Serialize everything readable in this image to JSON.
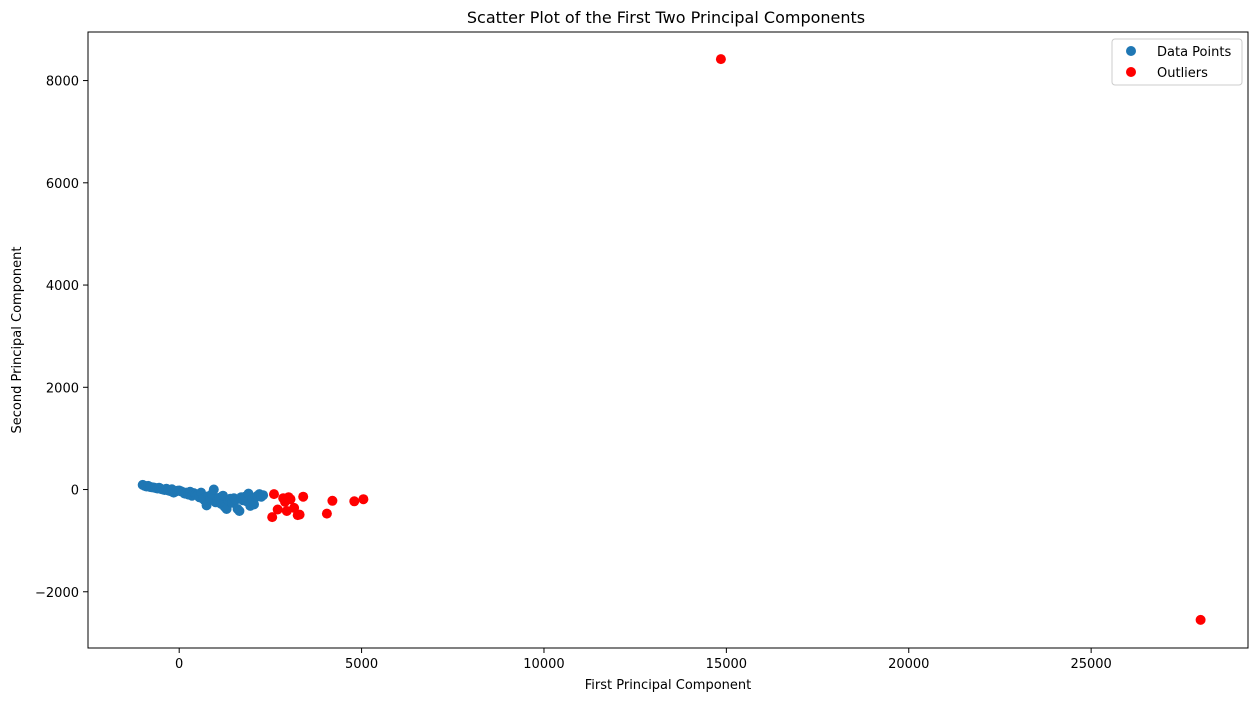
{
  "chart_data": {
    "type": "scatter",
    "title": "Scatter Plot of the First Two Principal Components",
    "xlabel": "First Principal Component",
    "ylabel": "Second Principal Component",
    "xlim": [
      -2500,
      29300
    ],
    "ylim": [
      -3100,
      8950
    ],
    "xticks": [
      0,
      5000,
      10000,
      15000,
      20000,
      25000
    ],
    "xtick_labels": [
      "0",
      "5000",
      "10000",
      "15000",
      "20000",
      "25000"
    ],
    "yticks": [
      -2000,
      0,
      2000,
      4000,
      6000,
      8000
    ],
    "ytick_labels": [
      "−2000",
      "0",
      "2000",
      "4000",
      "6000",
      "8000"
    ],
    "grid": false,
    "legend_position": "top-right",
    "series": [
      {
        "name": "Data Points",
        "color": "#1f77b4",
        "points": [
          [
            -1000,
            90
          ],
          [
            -950,
            75
          ],
          [
            -900,
            60
          ],
          [
            -850,
            70
          ],
          [
            -800,
            50
          ],
          [
            -750,
            45
          ],
          [
            -700,
            40
          ],
          [
            -650,
            30
          ],
          [
            -600,
            20
          ],
          [
            -550,
            35
          ],
          [
            -500,
            10
          ],
          [
            -450,
            0
          ],
          [
            -400,
            -10
          ],
          [
            -350,
            15
          ],
          [
            -300,
            -20
          ],
          [
            -250,
            -30
          ],
          [
            -200,
            5
          ],
          [
            -150,
            -60
          ],
          [
            -100,
            -40
          ],
          [
            -50,
            -25
          ],
          [
            0,
            -20
          ],
          [
            50,
            -35
          ],
          [
            100,
            -50
          ],
          [
            150,
            -80
          ],
          [
            200,
            -60
          ],
          [
            250,
            -100
          ],
          [
            300,
            -45
          ],
          [
            350,
            -120
          ],
          [
            400,
            -70
          ],
          [
            450,
            -90
          ],
          [
            500,
            -110
          ],
          [
            550,
            -150
          ],
          [
            600,
            -60
          ],
          [
            650,
            -180
          ],
          [
            700,
            -210
          ],
          [
            750,
            -310
          ],
          [
            800,
            -130
          ],
          [
            850,
            -170
          ],
          [
            900,
            -90
          ],
          [
            950,
            0
          ],
          [
            1000,
            -250
          ],
          [
            1050,
            -200
          ],
          [
            1100,
            -160
          ],
          [
            1150,
            -280
          ],
          [
            1200,
            -120
          ],
          [
            1250,
            -340
          ],
          [
            1300,
            -380
          ],
          [
            1350,
            -220
          ],
          [
            1400,
            -180
          ],
          [
            1450,
            -260
          ],
          [
            1500,
            -170
          ],
          [
            1550,
            -200
          ],
          [
            1600,
            -380
          ],
          [
            1650,
            -420
          ],
          [
            1700,
            -150
          ],
          [
            1750,
            -210
          ],
          [
            1800,
            -140
          ],
          [
            1850,
            -230
          ],
          [
            1900,
            -80
          ],
          [
            1950,
            -320
          ],
          [
            2000,
            -180
          ],
          [
            2050,
            -290
          ],
          [
            2100,
            -150
          ],
          [
            2150,
            -120
          ],
          [
            2200,
            -90
          ],
          [
            2250,
            -140
          ],
          [
            2300,
            -110
          ]
        ]
      },
      {
        "name": "Outliers",
        "color": "#ff0000",
        "points": [
          [
            2550,
            -540
          ],
          [
            2600,
            -90
          ],
          [
            2700,
            -390
          ],
          [
            2850,
            -170
          ],
          [
            2900,
            -240
          ],
          [
            2950,
            -420
          ],
          [
            3000,
            -150
          ],
          [
            3050,
            -190
          ],
          [
            3150,
            -360
          ],
          [
            3250,
            -500
          ],
          [
            3300,
            -490
          ],
          [
            3400,
            -140
          ],
          [
            4050,
            -470
          ],
          [
            4200,
            -220
          ],
          [
            4800,
            -230
          ],
          [
            5050,
            -190
          ],
          [
            14850,
            8420
          ],
          [
            28000,
            -2550
          ]
        ]
      }
    ]
  }
}
